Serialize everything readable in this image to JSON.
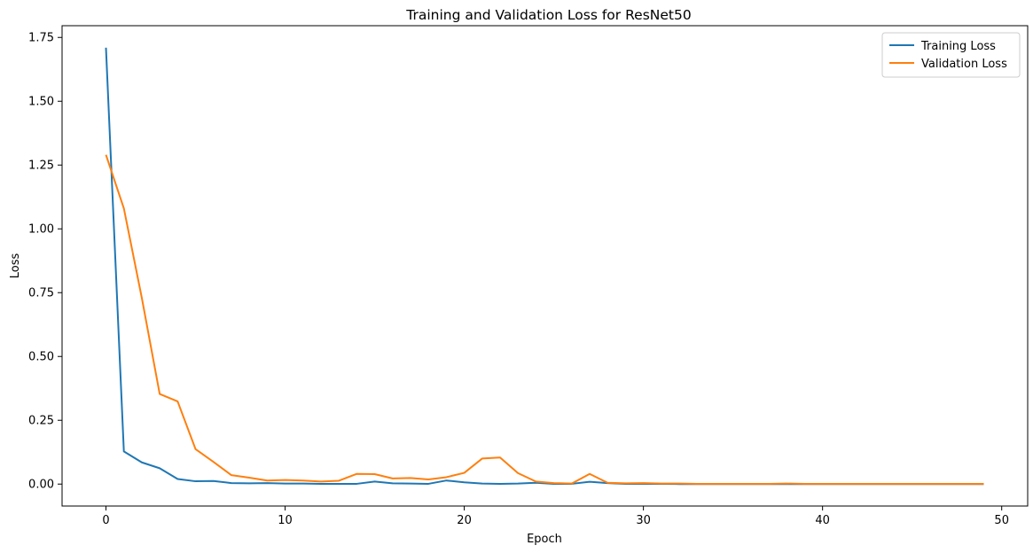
{
  "chart_data": {
    "type": "line",
    "title": "Training and Validation Loss for ResNet50",
    "xlabel": "Epoch",
    "ylabel": "Loss",
    "xlim": [
      -2.45,
      51.45
    ],
    "ylim": [
      -0.086,
      1.796
    ],
    "xticks": [
      0,
      10,
      20,
      30,
      40,
      50
    ],
    "xtick_labels": [
      "0",
      "10",
      "20",
      "30",
      "40",
      "50"
    ],
    "yticks": [
      0.0,
      0.25,
      0.5,
      0.75,
      1.0,
      1.25,
      1.5,
      1.75
    ],
    "ytick_labels": [
      "0.00",
      "0.25",
      "0.50",
      "0.75",
      "1.00",
      "1.25",
      "1.50",
      "1.75"
    ],
    "grid": false,
    "legend_position": "top-right",
    "x": [
      0,
      1,
      2,
      3,
      4,
      5,
      6,
      7,
      8,
      9,
      10,
      11,
      12,
      13,
      14,
      15,
      16,
      17,
      18,
      19,
      20,
      21,
      22,
      23,
      24,
      25,
      26,
      27,
      28,
      29,
      30,
      31,
      32,
      33,
      34,
      35,
      36,
      37,
      38,
      39,
      40,
      41,
      42,
      43,
      44,
      45,
      46,
      47,
      48,
      49
    ],
    "series": [
      {
        "name": "Training Loss",
        "color": "#1f77b4",
        "values": [
          1.71,
          0.128,
          0.085,
          0.062,
          0.02,
          0.011,
          0.012,
          0.004,
          0.003,
          0.004,
          0.002,
          0.002,
          0.001,
          0.001,
          0.001,
          0.01,
          0.003,
          0.002,
          0.001,
          0.014,
          0.007,
          0.002,
          0.001,
          0.002,
          0.005,
          0.001,
          0.001,
          0.009,
          0.004,
          0.001,
          0.001,
          0.001,
          0.0,
          0.0,
          0.0,
          0.0,
          0.0,
          0.0,
          0.0,
          0.0,
          0.0,
          0.0,
          0.0,
          0.0,
          0.0,
          0.0,
          0.0,
          0.0,
          0.0,
          0.0
        ]
      },
      {
        "name": "Validation Loss",
        "color": "#ff7f0e",
        "values": [
          1.29,
          1.08,
          0.73,
          0.353,
          0.324,
          0.137,
          0.087,
          0.035,
          0.025,
          0.014,
          0.016,
          0.014,
          0.01,
          0.013,
          0.04,
          0.039,
          0.022,
          0.024,
          0.018,
          0.027,
          0.044,
          0.1,
          0.104,
          0.043,
          0.01,
          0.004,
          0.002,
          0.04,
          0.005,
          0.003,
          0.004,
          0.002,
          0.002,
          0.001,
          0.001,
          0.001,
          0.001,
          0.001,
          0.002,
          0.001,
          0.001,
          0.001,
          0.001,
          0.001,
          0.001,
          0.001,
          0.001,
          0.001,
          0.001,
          0.001
        ]
      }
    ]
  }
}
